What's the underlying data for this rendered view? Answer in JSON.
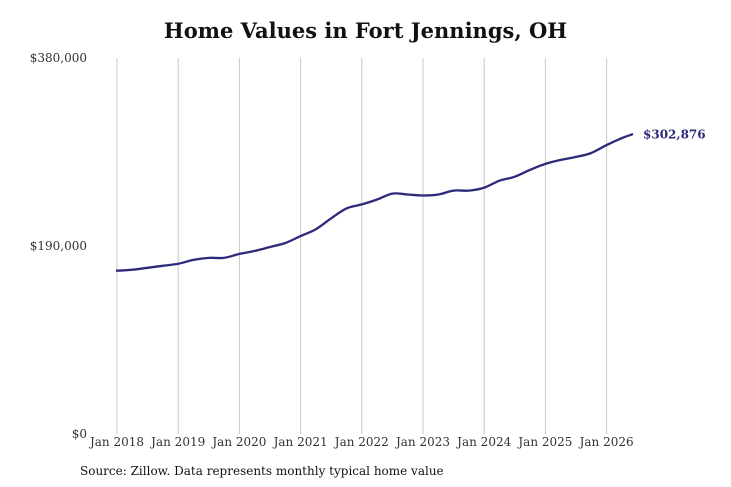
{
  "chart_data": {
    "type": "line",
    "title": "Home Values in Fort Jennings, OH",
    "xlabel": "",
    "ylabel": "",
    "ylim": [
      0,
      380000
    ],
    "y_ticks": [
      {
        "value": 0,
        "label": "$0"
      },
      {
        "value": 190000,
        "label": "$190,000"
      },
      {
        "value": 380000,
        "label": "$380,000"
      }
    ],
    "x_ticks": [
      "Jan 2018",
      "Jan 2019",
      "Jan 2020",
      "Jan 2021",
      "Jan 2022",
      "Jan 2023",
      "Jan 2024",
      "Jan 2025",
      "Jan 2026"
    ],
    "grid": "vertical",
    "line_color": "#2e2a7a",
    "series": [
      {
        "x": [
          "2018-01",
          "2018-04",
          "2018-07",
          "2018-10",
          "2019-01",
          "2019-04",
          "2019-07",
          "2019-10",
          "2020-01",
          "2020-04",
          "2020-07",
          "2020-10",
          "2021-01",
          "2021-04",
          "2021-07",
          "2021-10",
          "2022-01",
          "2022-04",
          "2022-07",
          "2022-10",
          "2023-01",
          "2023-04",
          "2023-07",
          "2023-10",
          "2024-01",
          "2024-04",
          "2024-07",
          "2024-10",
          "2025-01",
          "2025-04",
          "2025-07",
          "2025-10",
          "2026-01",
          "2026-04",
          "2026-06"
        ],
        "values": [
          165000,
          166000,
          168000,
          170000,
          172000,
          176000,
          178000,
          178000,
          182000,
          185000,
          189000,
          193000,
          200000,
          207000,
          218000,
          228000,
          232000,
          237000,
          243000,
          242000,
          241000,
          242000,
          246000,
          246000,
          249000,
          256000,
          260000,
          267000,
          273000,
          277000,
          280000,
          284000,
          292000,
          299000,
          302876
        ]
      }
    ],
    "end_label": "$302,876",
    "source": "Source: Zillow. Data represents monthly typical home value"
  }
}
